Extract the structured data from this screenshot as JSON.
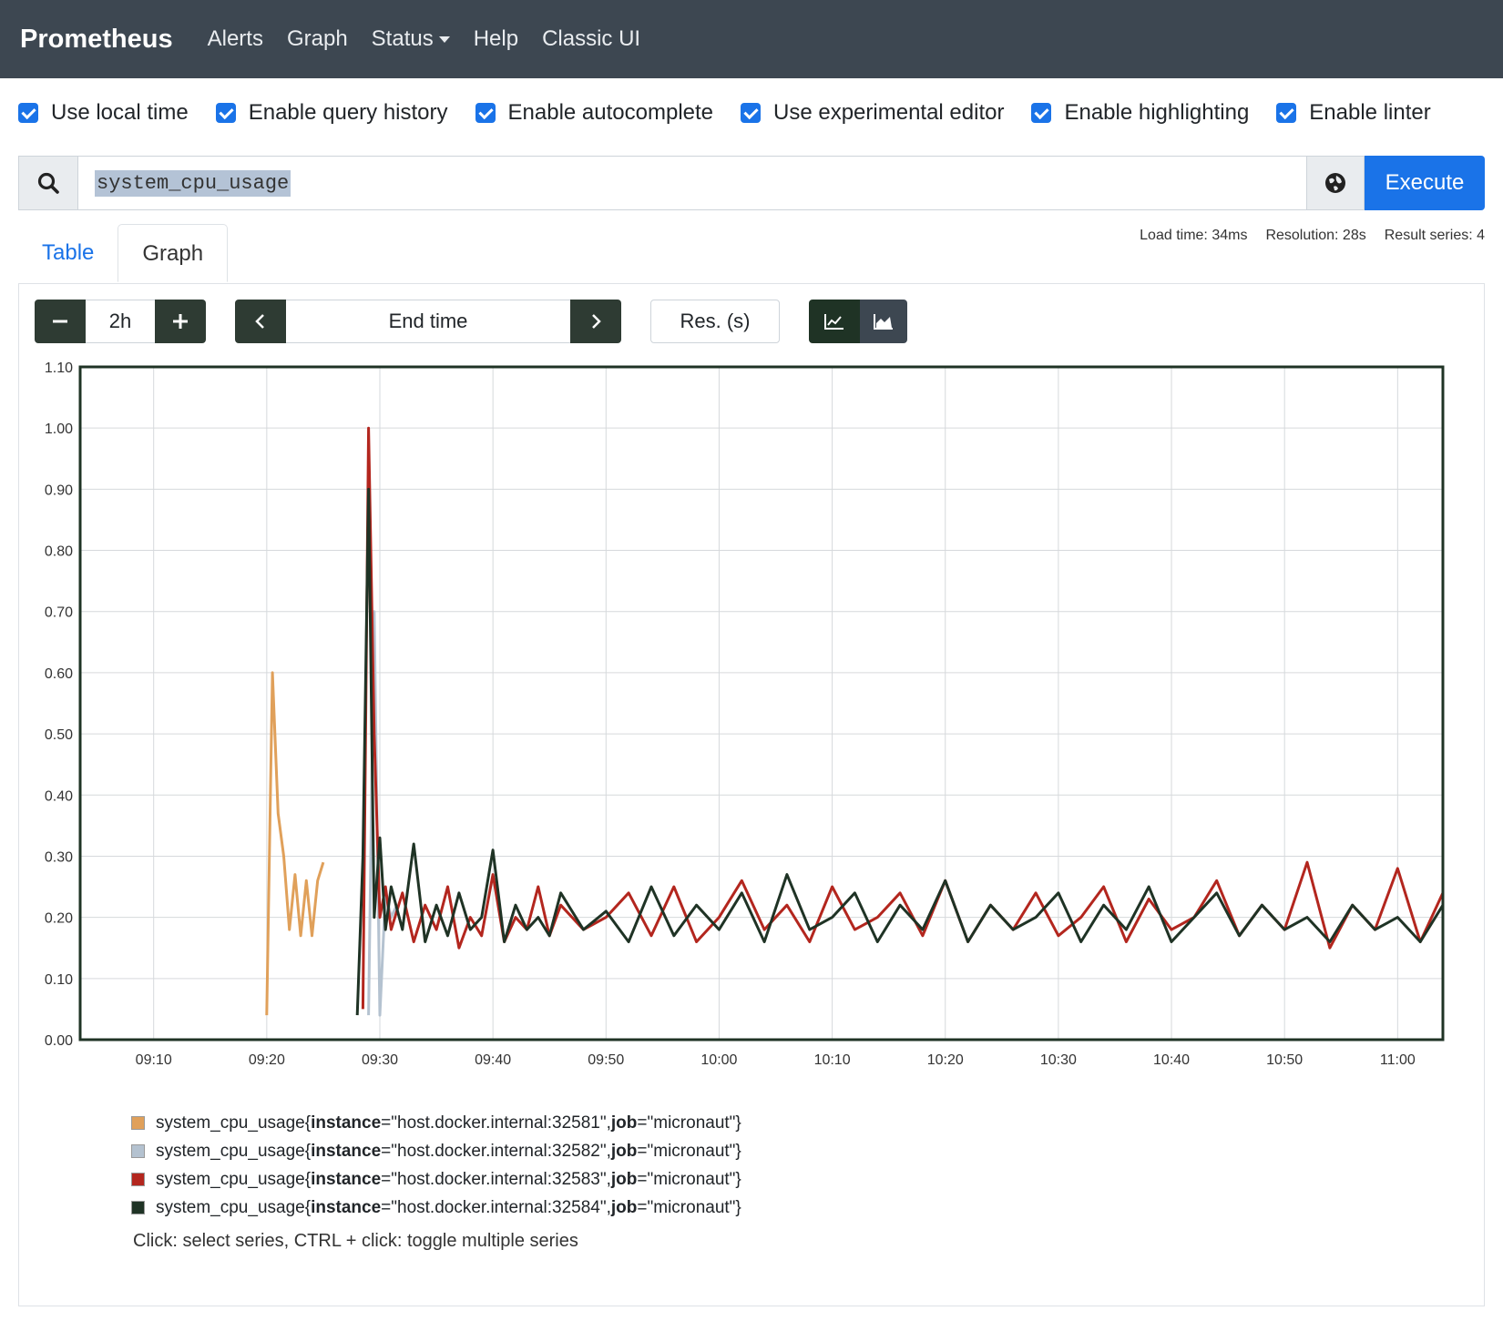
{
  "nav": {
    "brand": "Prometheus",
    "items": [
      "Alerts",
      "Graph",
      "Status",
      "Help",
      "Classic UI"
    ]
  },
  "options": [
    {
      "label": "Use local time",
      "checked": true
    },
    {
      "label": "Enable query history",
      "checked": true
    },
    {
      "label": "Enable autocomplete",
      "checked": true
    },
    {
      "label": "Use experimental editor",
      "checked": true
    },
    {
      "label": "Enable highlighting",
      "checked": true
    },
    {
      "label": "Enable linter",
      "checked": true
    }
  ],
  "query": {
    "expression": "system_cpu_usage",
    "execute_label": "Execute"
  },
  "tabs": {
    "table": "Table",
    "graph": "Graph"
  },
  "stats": {
    "load_time": "Load time: 34ms",
    "resolution": "Resolution: 28s",
    "result_series": "Result series: 4"
  },
  "controls": {
    "range": "2h",
    "end_time": "End time",
    "resolution": "Res. (s)"
  },
  "chart_data": {
    "type": "line",
    "ylim": [
      0,
      1.1
    ],
    "yticks": [
      "0.00",
      "0.10",
      "0.20",
      "0.30",
      "0.40",
      "0.50",
      "0.60",
      "0.70",
      "0.80",
      "0.90",
      "1.00",
      "1.10"
    ],
    "xticks": [
      "09:10",
      "09:20",
      "09:30",
      "09:40",
      "09:50",
      "10:00",
      "10:10",
      "10:20",
      "10:30",
      "10:40",
      "10:50",
      "11:00"
    ],
    "xlim_minutes": [
      -6.5,
      114
    ],
    "series": [
      {
        "name": "system_cpu_usage{instance=\"host.docker.internal:32581\", job=\"micronaut\"}",
        "color": "#e0a05a",
        "x": [
          10,
          10.5,
          11,
          11.5,
          12,
          12.5,
          13,
          13.5,
          14,
          14.5,
          15
        ],
        "y": [
          0.04,
          0.6,
          0.37,
          0.3,
          0.18,
          0.27,
          0.17,
          0.26,
          0.17,
          0.26,
          0.29
        ]
      },
      {
        "name": "system_cpu_usage{instance=\"host.docker.internal:32582\", job=\"micronaut\"}",
        "color": "#b4c2d0",
        "x": [
          19,
          19.5,
          20,
          20.5,
          21,
          21.5
        ],
        "y": [
          0.04,
          0.7,
          0.04,
          0.24,
          0.2,
          0.22
        ]
      },
      {
        "name": "system_cpu_usage{instance=\"host.docker.internal:32583\", job=\"micronaut\"}",
        "color": "#b3261e",
        "x": [
          18.5,
          19,
          19.5,
          20,
          20.5,
          21,
          22,
          23,
          24,
          25,
          26,
          27,
          28,
          29,
          30,
          31,
          32,
          33,
          34,
          35,
          36,
          38,
          40,
          42,
          44,
          46,
          48,
          50,
          52,
          54,
          56,
          58,
          60,
          62,
          64,
          66,
          68,
          70,
          72,
          74,
          76,
          78,
          80,
          82,
          84,
          86,
          88,
          90,
          92,
          94,
          96,
          98,
          100,
          102,
          104,
          106,
          108,
          110,
          112,
          114
        ],
        "y": [
          0.05,
          1.0,
          0.5,
          0.2,
          0.25,
          0.18,
          0.24,
          0.16,
          0.22,
          0.18,
          0.25,
          0.15,
          0.2,
          0.17,
          0.27,
          0.16,
          0.2,
          0.18,
          0.25,
          0.17,
          0.22,
          0.18,
          0.2,
          0.24,
          0.17,
          0.25,
          0.16,
          0.2,
          0.26,
          0.18,
          0.22,
          0.16,
          0.25,
          0.18,
          0.2,
          0.24,
          0.17,
          0.26,
          0.16,
          0.22,
          0.18,
          0.24,
          0.17,
          0.2,
          0.25,
          0.16,
          0.23,
          0.18,
          0.2,
          0.26,
          0.17,
          0.22,
          0.18,
          0.29,
          0.15,
          0.22,
          0.18,
          0.28,
          0.16,
          0.24
        ]
      },
      {
        "name": "system_cpu_usage{instance=\"host.docker.internal:32584\", job=\"micronaut\"}",
        "color": "#1f3325",
        "x": [
          18,
          18.5,
          19,
          19.5,
          20,
          20.5,
          21,
          22,
          23,
          24,
          25,
          26,
          27,
          28,
          29,
          30,
          31,
          32,
          33,
          34,
          35,
          36,
          38,
          40,
          42,
          44,
          46,
          48,
          50,
          52,
          54,
          56,
          58,
          60,
          62,
          64,
          66,
          68,
          70,
          72,
          74,
          76,
          78,
          80,
          82,
          84,
          86,
          88,
          90,
          92,
          94,
          96,
          98,
          100,
          102,
          104,
          106,
          108,
          110,
          112,
          114
        ],
        "y": [
          0.04,
          0.3,
          0.9,
          0.2,
          0.33,
          0.18,
          0.25,
          0.18,
          0.32,
          0.16,
          0.22,
          0.17,
          0.24,
          0.18,
          0.2,
          0.31,
          0.16,
          0.22,
          0.18,
          0.2,
          0.17,
          0.24,
          0.18,
          0.21,
          0.16,
          0.25,
          0.17,
          0.22,
          0.18,
          0.24,
          0.16,
          0.27,
          0.18,
          0.2,
          0.24,
          0.16,
          0.22,
          0.18,
          0.26,
          0.16,
          0.22,
          0.18,
          0.2,
          0.24,
          0.16,
          0.22,
          0.18,
          0.25,
          0.16,
          0.2,
          0.24,
          0.17,
          0.22,
          0.18,
          0.2,
          0.16,
          0.22,
          0.18,
          0.2,
          0.16,
          0.22
        ]
      }
    ]
  },
  "legend": [
    {
      "prefix": "system_cpu_usage{",
      "k1": "instance",
      "v1": "=\"host.docker.internal:32581\", ",
      "k2": "job",
      "v2": "=\"micronaut\"}",
      "color": "#e0a05a"
    },
    {
      "prefix": "system_cpu_usage{",
      "k1": "instance",
      "v1": "=\"host.docker.internal:32582\", ",
      "k2": "job",
      "v2": "=\"micronaut\"}",
      "color": "#b4c2d0"
    },
    {
      "prefix": "system_cpu_usage{",
      "k1": "instance",
      "v1": "=\"host.docker.internal:32583\", ",
      "k2": "job",
      "v2": "=\"micronaut\"}",
      "color": "#b3261e"
    },
    {
      "prefix": "system_cpu_usage{",
      "k1": "instance",
      "v1": "=\"host.docker.internal:32584\", ",
      "k2": "job",
      "v2": "=\"micronaut\"}",
      "color": "#1f3325"
    }
  ],
  "hint": "Click: select series, CTRL + click: toggle multiple series"
}
